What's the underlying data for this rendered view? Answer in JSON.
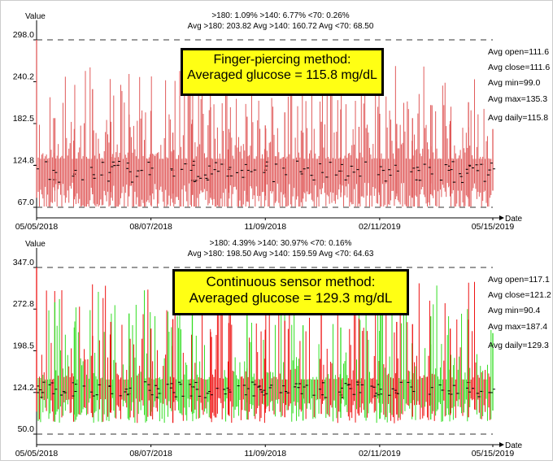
{
  "chart_data": [
    {
      "type": "line",
      "subtype": "high-low-open-close",
      "xlabel": "Date",
      "ylabel": "Value",
      "x_ticks": [
        "05/05/2018",
        "08/07/2018",
        "11/09/2018",
        "02/11/2019",
        "05/15/2019"
      ],
      "xlim": [
        "05/05/2018",
        "05/15/2019"
      ],
      "ylim": [
        67.0,
        298.0
      ],
      "y_ticks": [
        67.0,
        124.8,
        182.5,
        240.2,
        298.0
      ],
      "y_tick_labels": [
        "67.0",
        "124.8",
        "182.5",
        "240.2",
        "298.0"
      ],
      "reference_lines": [
        298.0,
        67.0
      ],
      "grid": false,
      "stats_line_1": ">180: 1.09%    >140: 6.77%    <70: 0.26%",
      "stats_line_2": "Avg >180: 203.82   Avg >140: 160.72   Avg <70: 68.50",
      "callout": [
        "Finger-piercing method:",
        "Averaged glucose = 115.8 mg/dL"
      ],
      "side_stats": [
        "Avg open=111.6",
        "Avg close=111.6",
        "Avg min=99.0",
        "Avg max=135.3",
        "Avg daily=115.8"
      ],
      "summary": {
        "avg_open": 111.6,
        "avg_close": 111.6,
        "avg_min": 99.0,
        "avg_max": 135.3,
        "avg_daily": 115.8
      },
      "colors": {
        "up": "#e05a5a",
        "down": "#e05a5a",
        "ticks": "#000000"
      },
      "series": [
        {
          "values": {
            "x": [
              "05/05/2018",
              "05/20/2018",
              "06/05/2018",
              "06/20/2018",
              "07/05/2018",
              "07/20/2018",
              "08/07/2018",
              "08/25/2018",
              "09/10/2018",
              "09/25/2018",
              "10/10/2018",
              "10/25/2018",
              "11/09/2018",
              "11/25/2018",
              "12/10/2018",
              "12/25/2018",
              "01/10/2019",
              "01/25/2019",
              "02/11/2019",
              "02/25/2019",
              "03/10/2019",
              "03/25/2019",
              "04/10/2019",
              "04/25/2019",
              "05/15/2019"
            ],
            "open": [
              125,
              118,
              110,
              122,
              115,
              128,
              112,
              120,
              118,
              124,
              110,
              126,
              115,
              121,
              113,
              127,
              117,
              119,
              112,
              125,
              116,
              122,
              118,
              114,
              128
            ],
            "close": [
              120,
              115,
              118,
              112,
              123,
              116,
              121,
              110,
              125,
              113,
              122,
              118,
              124,
              112,
              120,
              115,
              126,
              110,
              123,
              117,
              121,
              113,
              119,
              125,
              120
            ],
            "low": [
              80,
              90,
              78,
              85,
              88,
              82,
              70,
              86,
              84,
              80,
              87,
              75,
              83,
              86,
              79,
              85,
              81,
              72,
              84,
              86,
              80,
              85,
              82,
              79,
              90
            ],
            "high": [
              298,
              190,
              175,
              230,
              185,
              195,
              200,
              170,
              188,
              205,
              175,
              192,
              180,
              198,
              170,
              185,
              202,
              178,
              196,
              182,
              190,
              208,
              186,
              212,
              175
            ]
          }
        }
      ]
    },
    {
      "type": "line",
      "subtype": "high-low-open-close",
      "xlabel": "Date",
      "ylabel": "Value",
      "x_ticks": [
        "05/05/2018",
        "08/07/2018",
        "11/09/2018",
        "02/11/2019",
        "05/15/2019"
      ],
      "xlim": [
        "05/05/2018",
        "05/15/2019"
      ],
      "ylim": [
        50.0,
        347.0
      ],
      "y_ticks": [
        50.0,
        124.2,
        198.5,
        272.8,
        347.0
      ],
      "y_tick_labels": [
        "50.0",
        "124.2",
        "198.5",
        "272.8",
        "347.0"
      ],
      "reference_lines": [
        347.0,
        50.0
      ],
      "grid": false,
      "stats_line_1": ">180: 4.39%    >140: 30.97%    <70: 0.16%",
      "stats_line_2": "Avg >180: 198.50   Avg >140: 159.59   Avg <70: 64.63",
      "callout": [
        "Continuous sensor method:",
        "Averaged glucose = 129.3 mg/dL"
      ],
      "side_stats": [
        "Avg open=117.1",
        "Avg close=121.2",
        "Avg min=90.4",
        "Avg max=187.4",
        "Avg daily=129.3"
      ],
      "summary": {
        "avg_open": 117.1,
        "avg_close": 121.2,
        "avg_min": 90.4,
        "avg_max": 187.4,
        "avg_daily": 129.3
      },
      "colors": {
        "up": "#33dd22",
        "down": "#ee1111",
        "ticks": "#000000"
      },
      "series": [
        {
          "values": {
            "x": [
              "05/05/2018",
              "05/20/2018",
              "06/05/2018",
              "06/20/2018",
              "07/05/2018",
              "07/20/2018",
              "08/07/2018",
              "08/25/2018",
              "09/10/2018",
              "09/25/2018",
              "10/10/2018",
              "10/25/2018",
              "11/09/2018",
              "11/25/2018",
              "12/10/2018",
              "12/25/2018",
              "01/10/2019",
              "01/25/2019",
              "02/11/2019",
              "02/25/2019",
              "03/10/2019",
              "03/25/2019",
              "04/10/2019",
              "04/25/2019",
              "05/15/2019"
            ],
            "open": [
              130,
              122,
              118,
              125,
              135,
              120,
              128,
              140,
              118,
              126,
              132,
              120,
              128,
              136,
              122,
              130,
              125,
              138,
              120,
              128,
              134,
              121,
              127,
              132,
              124
            ],
            "close": [
              124,
              130,
              126,
              118,
              122,
              132,
              120,
              124,
              134,
              120,
              125,
              131,
              122,
              126,
              134,
              120,
              132,
              124,
              130,
              122,
              126,
              133,
              121,
              125,
              130
            ],
            "low": [
              90,
              72,
              85,
              80,
              88,
              75,
              82,
              70,
              86,
              78,
              84,
              76,
              88,
              80,
              74,
              86,
              79,
              83,
              77,
              85,
              81,
              76,
              84,
              80,
              92
            ],
            "high": [
              347,
              285,
              240,
              225,
              250,
              265,
              238,
              255,
              270,
              232,
              248,
              262,
              236,
              252,
              244,
              268,
              240,
              256,
              234,
              250,
              246,
              260,
              238,
              254,
              230
            ]
          }
        }
      ]
    }
  ]
}
